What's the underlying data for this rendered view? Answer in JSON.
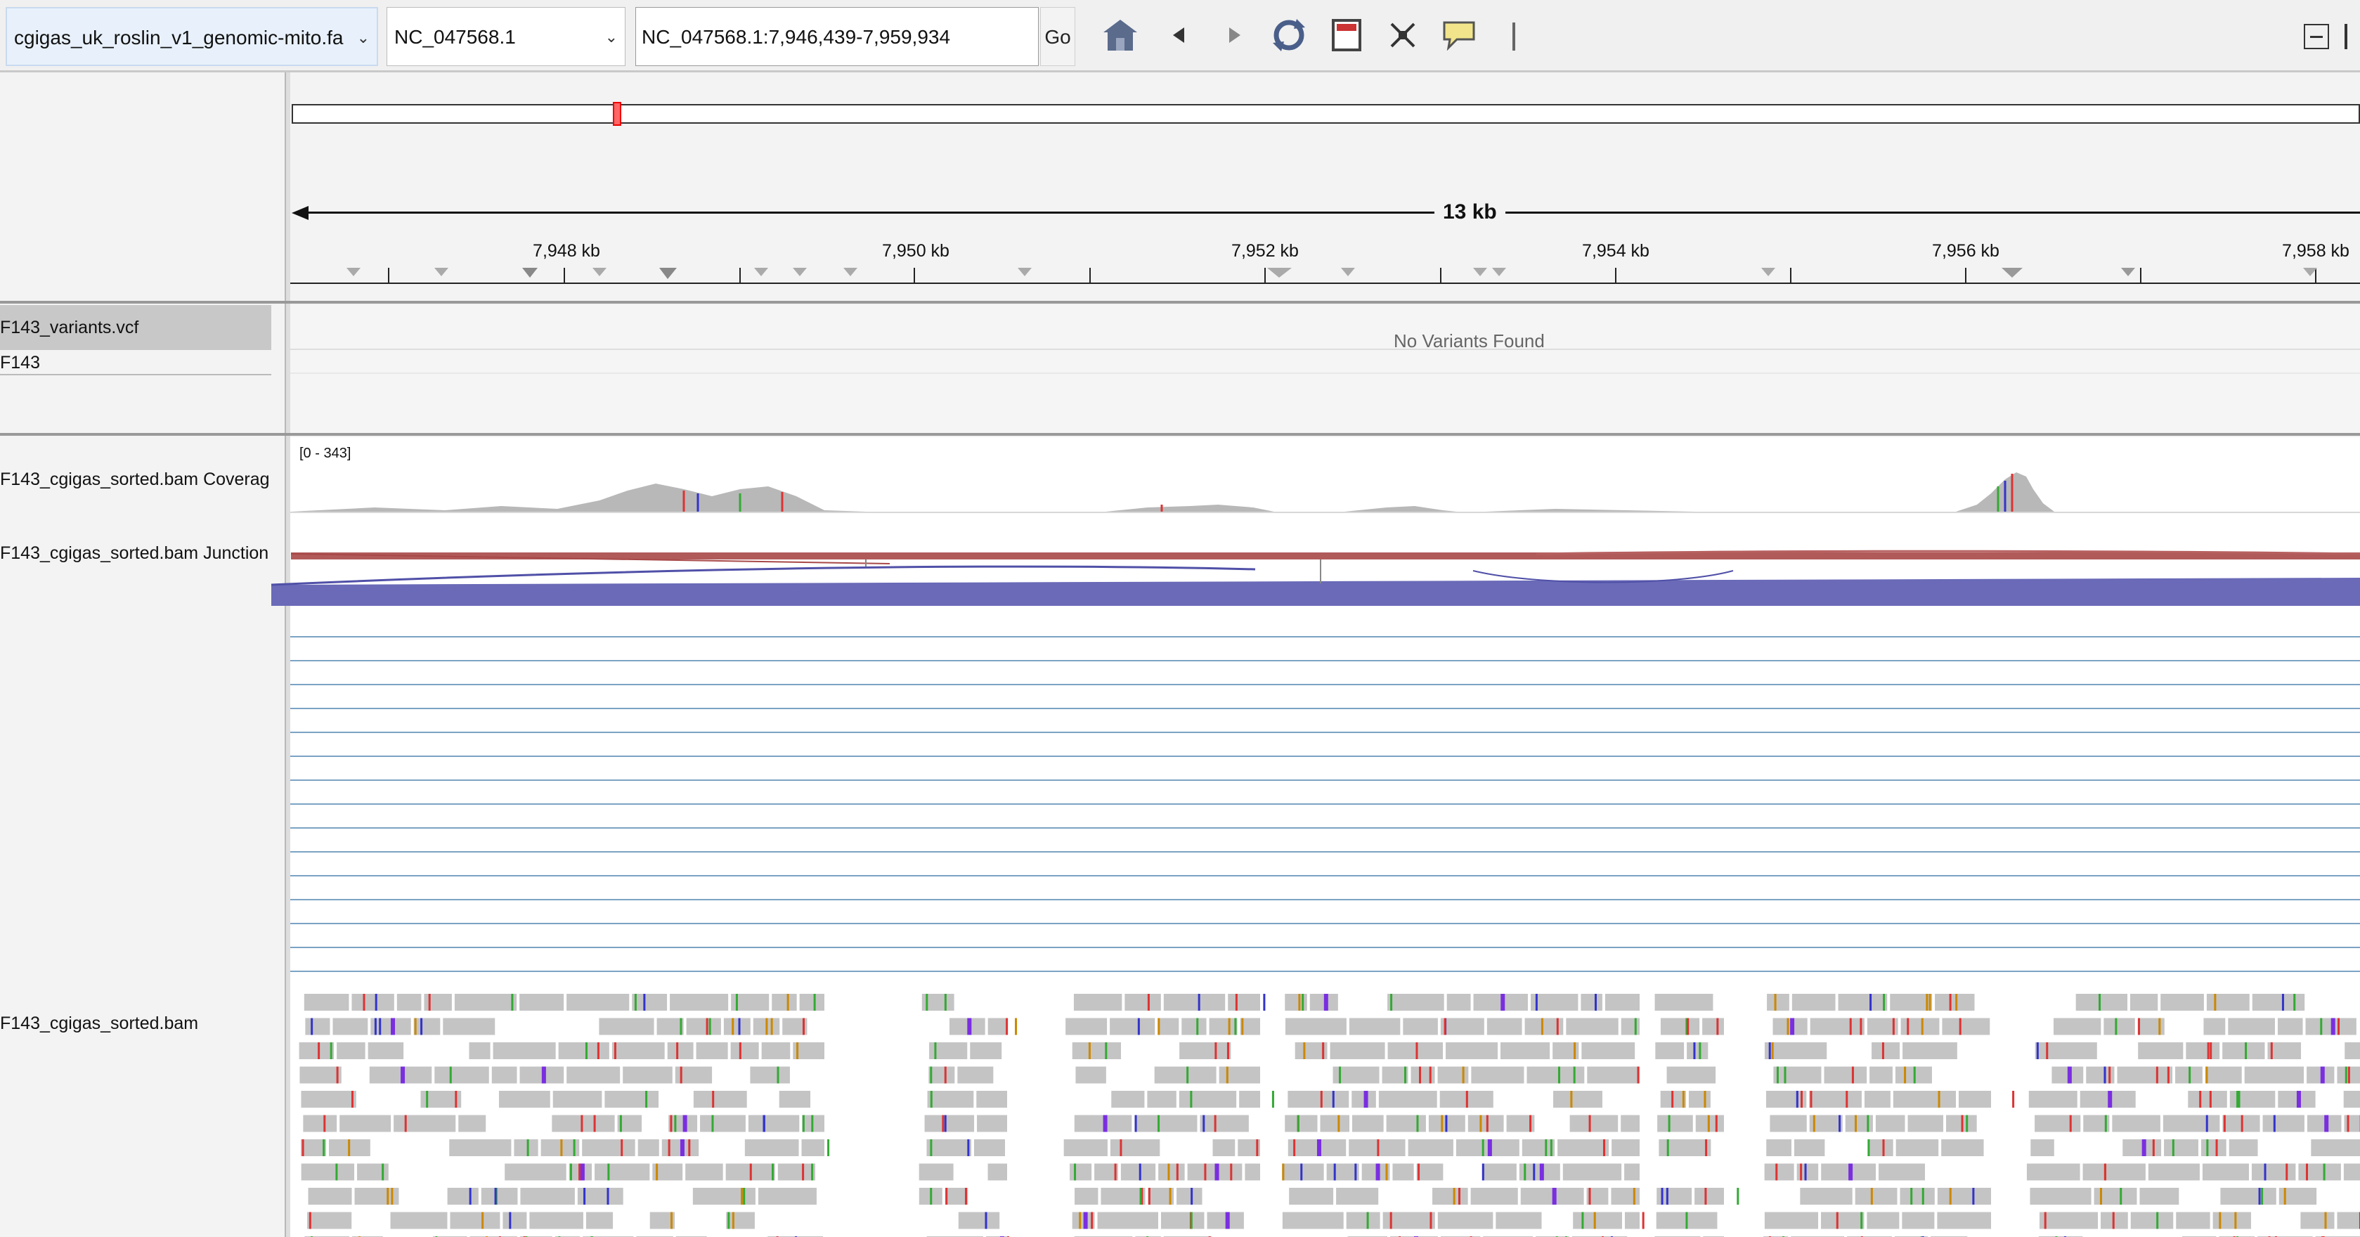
{
  "toolbar": {
    "genome": "cgigas_uk_roslin_v1_genomic-mito.fa",
    "chromosome": "NC_047568.1",
    "locus": "NC_047568.1:7,946,439-7,959,934",
    "go_label": "Go",
    "icons": [
      "home-icon",
      "back-icon",
      "forward-icon",
      "refresh-icon",
      "ruler-icon",
      "fit-icon",
      "popup-icon"
    ]
  },
  "ruler": {
    "span_label": "13 kb",
    "ticks": [
      "7,948 kb",
      "7,950 kb",
      "7,952 kb",
      "7,954 kb",
      "7,956 kb",
      "7,958 kb"
    ]
  },
  "tracks": {
    "vcf_name": "F143_variants.vcf",
    "sample_name": "F143",
    "no_variants": "No Variants Found",
    "coverage_name": "F143_cgigas_sorted.bam Coverag",
    "coverage_range": "[0 - 343]",
    "junction_name": "F143_cgigas_sorted.bam Junction",
    "alignment_name": "F143_cgigas_sorted.bam"
  },
  "colors": {
    "junction_pos": "#b04040",
    "junction_neg": "#5a5ab0",
    "read": "#c4c4c4",
    "insertion": "#7a2ee0"
  }
}
